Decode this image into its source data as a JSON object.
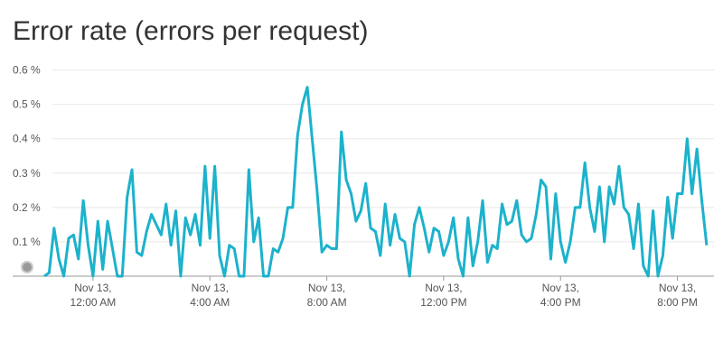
{
  "chart_data": {
    "type": "line",
    "title": "Error rate (errors per request)",
    "x": [
      -100,
      -90,
      -80,
      -70,
      -60,
      -50,
      -40,
      -30,
      -20,
      -10,
      0,
      10,
      20,
      30,
      40,
      50,
      60,
      70,
      80,
      90,
      100,
      110,
      120,
      130,
      140,
      150,
      160,
      170,
      180,
      190,
      200,
      210,
      220,
      230,
      240,
      250,
      260,
      270,
      280,
      290,
      300,
      310,
      320,
      330,
      340,
      350,
      360,
      370,
      380,
      390,
      400,
      410,
      420,
      430,
      440,
      450,
      460,
      470,
      480,
      490,
      500,
      510,
      520,
      530,
      540,
      550,
      560,
      570,
      580,
      590,
      600,
      610,
      620,
      630,
      640,
      650,
      660,
      670,
      680,
      690,
      700,
      710,
      720,
      730,
      740,
      750,
      760,
      770,
      780,
      790,
      800,
      810,
      820,
      830,
      840,
      850,
      860,
      870,
      880,
      890,
      900,
      910,
      920,
      930,
      940,
      950,
      960,
      970,
      980,
      990,
      1000,
      1010,
      1020,
      1030,
      1040,
      1050,
      1060,
      1070,
      1080,
      1090,
      1100,
      1110,
      1120,
      1130,
      1140,
      1150,
      1160,
      1170,
      1180,
      1190,
      1200,
      1210,
      1220,
      1230,
      1240,
      1250,
      1260
    ],
    "values": [
      0,
      0.01,
      0.14,
      0.05,
      0,
      0.11,
      0.12,
      0.05,
      0.22,
      0.09,
      0,
      0.16,
      0.02,
      0.16,
      0.08,
      0,
      0,
      0.23,
      0.31,
      0.07,
      0.06,
      0.13,
      0.18,
      0.15,
      0.12,
      0.21,
      0.09,
      0.19,
      0,
      0.17,
      0.12,
      0.18,
      0.09,
      0.32,
      0.11,
      0.32,
      0.06,
      0,
      0.09,
      0.08,
      0,
      0,
      0.31,
      0.1,
      0.17,
      0,
      0,
      0.08,
      0.07,
      0.11,
      0.2,
      0.2,
      0.41,
      0.5,
      0.55,
      0.4,
      0.25,
      0.07,
      0.09,
      0.08,
      0.08,
      0.42,
      0.28,
      0.24,
      0.16,
      0.19,
      0.27,
      0.14,
      0.13,
      0.06,
      0.21,
      0.09,
      0.18,
      0.11,
      0.1,
      0,
      0.15,
      0.2,
      0.14,
      0.07,
      0.14,
      0.13,
      0.06,
      0.1,
      0.17,
      0.05,
      0,
      0.17,
      0.03,
      0.1,
      0.22,
      0.04,
      0.09,
      0.08,
      0.21,
      0.15,
      0.16,
      0.22,
      0.12,
      0.1,
      0.11,
      0.18,
      0.28,
      0.26,
      0.05,
      0.24,
      0.1,
      0.04,
      0.1,
      0.2,
      0.2,
      0.33,
      0.2,
      0.13,
      0.26,
      0.1,
      0.26,
      0.21,
      0.32,
      0.2,
      0.18,
      0.08,
      0.21,
      0.03,
      0,
      0.19,
      0,
      0.06,
      0.23,
      0.11,
      0.24,
      0.24,
      0.4,
      0.24,
      0.37,
      0.22,
      0.09
    ],
    "color": "#1cb2cc",
    "xlim": [
      -165,
      1275
    ],
    "xticks": [
      {
        "value": 0,
        "label": "Nov 13,\n12:00 AM"
      },
      {
        "value": 240,
        "label": "Nov 13,\n4:00 AM"
      },
      {
        "value": 480,
        "label": "Nov 13,\n8:00 AM"
      },
      {
        "value": 720,
        "label": "Nov 13,\n12:00 PM"
      },
      {
        "value": 960,
        "label": "Nov 13,\n4:00 PM"
      },
      {
        "value": 1200,
        "label": "Nov 13,\n8:00 PM"
      }
    ],
    "ylim": [
      0,
      0.62
    ],
    "yticks": [
      {
        "value": 0.1,
        "label": "0.1 %"
      },
      {
        "value": 0.2,
        "label": "0.2 %"
      },
      {
        "value": 0.3,
        "label": "0.3 %"
      },
      {
        "value": 0.4,
        "label": "0.4 %"
      },
      {
        "value": 0.5,
        "label": "0.5 %"
      },
      {
        "value": 0.6,
        "label": "0.6 %"
      }
    ],
    "grid": true
  }
}
